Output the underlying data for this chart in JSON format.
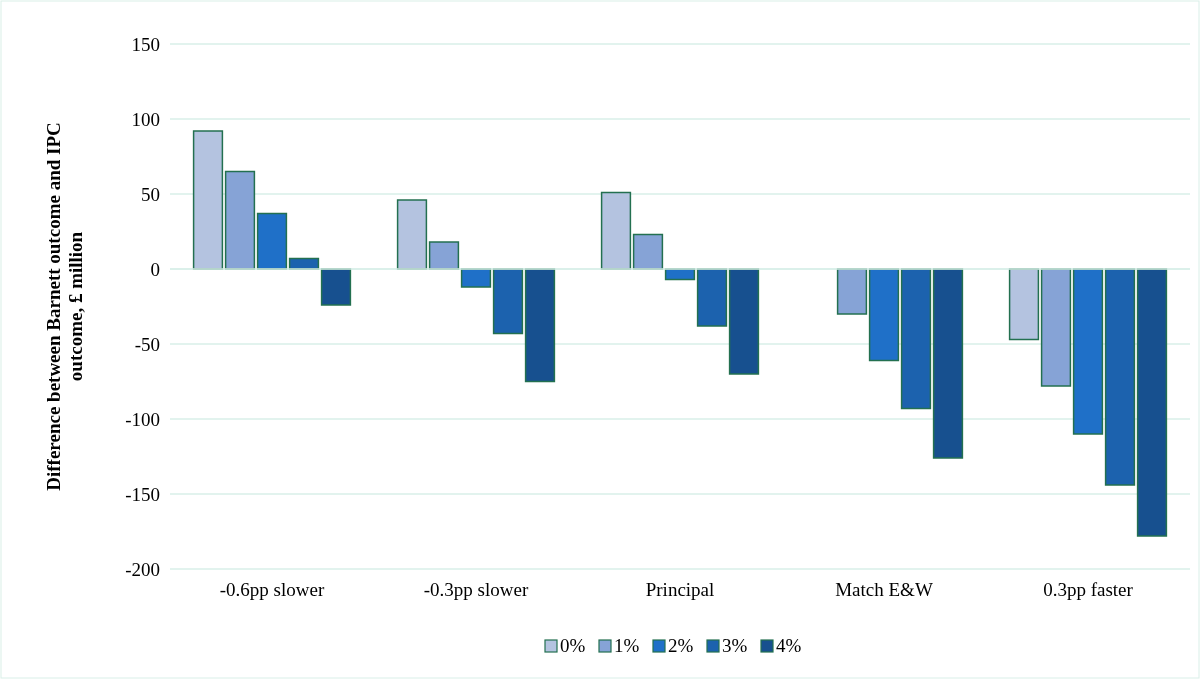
{
  "chart_data": {
    "type": "bar",
    "ylabel": "Difference between Barnett outcome and IPC outcome, £ million",
    "categories": [
      "-0.6pp slower",
      "-0.3pp slower",
      "Principal",
      "Match E&W",
      "0.3pp faster"
    ],
    "series": [
      {
        "name": "0%",
        "color": "#b4c3e0",
        "values": [
          92,
          46,
          51,
          0,
          -47
        ]
      },
      {
        "name": "1%",
        "color": "#86a3d6",
        "values": [
          65,
          18,
          23,
          -30,
          -78
        ]
      },
      {
        "name": "2%",
        "color": "#1f70c8",
        "values": [
          37,
          -12,
          -7,
          -61,
          -110
        ]
      },
      {
        "name": "3%",
        "color": "#1c62ae",
        "values": [
          7,
          -43,
          -38,
          -93,
          -144
        ]
      },
      {
        "name": "4%",
        "color": "#17508f",
        "values": [
          -24,
          -75,
          -70,
          -126,
          -178
        ]
      }
    ],
    "ylim": [
      -200,
      150
    ],
    "yticks": [
      -200,
      -150,
      -100,
      -50,
      0,
      50,
      100,
      150
    ],
    "grid": "y",
    "legend": "bottom"
  }
}
